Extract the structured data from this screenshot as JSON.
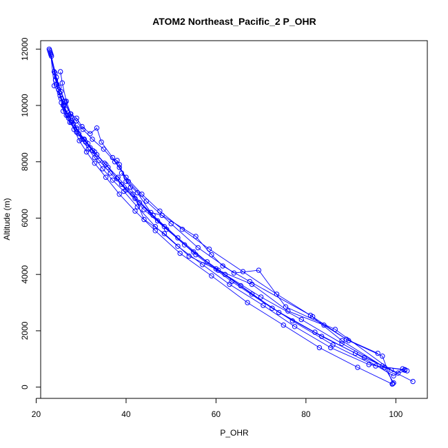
{
  "chart_data": {
    "type": "scatter",
    "title": "ATOM2 Northeast_Pacific_2 P_OHR",
    "xlabel": "P_OHR",
    "ylabel": "Altitude (m)",
    "xlim": [
      21,
      107
    ],
    "ylim": [
      -400,
      12300
    ],
    "x_ticks": [
      20,
      40,
      60,
      80,
      100
    ],
    "y_ticks": [
      0,
      2000,
      4000,
      6000,
      8000,
      10000,
      12000
    ],
    "grid": false,
    "legend": "none",
    "marker": "open-circle",
    "series_color": "#0000ff",
    "series": [
      {
        "points": [
          [
            23.0,
            11950
          ],
          [
            23.2,
            11850
          ],
          [
            24.0,
            10700
          ],
          [
            25.3,
            10350
          ],
          [
            26.0,
            9800
          ],
          [
            27.5,
            9400
          ],
          [
            29.0,
            9050
          ],
          [
            31.0,
            8700
          ],
          [
            33.0,
            8350
          ],
          [
            35.5,
            7900
          ],
          [
            38.0,
            7400
          ],
          [
            42.0,
            6700
          ],
          [
            47.0,
            5900
          ],
          [
            53.0,
            5050
          ],
          [
            60.0,
            4200
          ],
          [
            68.0,
            3300
          ],
          [
            77.0,
            2350
          ],
          [
            86.0,
            1500
          ],
          [
            95.5,
            750
          ],
          [
            102.0,
            620
          ]
        ]
      },
      {
        "points": [
          [
            103.8,
            200
          ],
          [
            97.0,
            750
          ],
          [
            88.0,
            1550
          ],
          [
            79.0,
            2400
          ],
          [
            70.0,
            3200
          ],
          [
            62.0,
            4000
          ],
          [
            55.0,
            4800
          ],
          [
            49.0,
            5600
          ],
          [
            44.0,
            6300
          ],
          [
            40.0,
            7000
          ],
          [
            36.5,
            7600
          ],
          [
            34.0,
            8050
          ],
          [
            32.0,
            8500
          ],
          [
            30.5,
            8800
          ],
          [
            29.0,
            9200
          ],
          [
            27.8,
            9600
          ],
          [
            26.5,
            10100
          ],
          [
            25.5,
            10500
          ],
          [
            24.5,
            11000
          ],
          [
            23.3,
            11800
          ]
        ]
      },
      {
        "points": [
          [
            23.1,
            11900
          ],
          [
            24.2,
            11150
          ],
          [
            25.0,
            10550
          ],
          [
            26.2,
            10000
          ],
          [
            27.0,
            9650
          ],
          [
            28.3,
            9350
          ],
          [
            29.5,
            9000
          ],
          [
            31.5,
            8650
          ],
          [
            33.5,
            8250
          ],
          [
            36.0,
            7800
          ],
          [
            39.0,
            7200
          ],
          [
            43.0,
            6550
          ],
          [
            48.5,
            5700
          ],
          [
            55.5,
            4700
          ],
          [
            63.5,
            3750
          ],
          [
            72.5,
            2800
          ],
          [
            82.0,
            1950
          ],
          [
            91.0,
            1200
          ],
          [
            99.5,
            400
          ],
          [
            101.5,
            650
          ]
        ]
      },
      {
        "points": [
          [
            99.2,
            110
          ],
          [
            91.5,
            700
          ],
          [
            83.0,
            1400
          ],
          [
            75.0,
            2200
          ],
          [
            67.0,
            3000
          ],
          [
            59.0,
            3950
          ],
          [
            52.0,
            4750
          ],
          [
            46.5,
            5550
          ],
          [
            42.0,
            6250
          ],
          [
            38.5,
            6850
          ],
          [
            35.5,
            7450
          ],
          [
            33.0,
            7950
          ],
          [
            31.2,
            8350
          ],
          [
            29.6,
            8750
          ],
          [
            28.4,
            9150
          ],
          [
            27.2,
            9550
          ],
          [
            26.0,
            10000
          ],
          [
            25.2,
            10450
          ],
          [
            24.3,
            10900
          ],
          [
            23.4,
            11750
          ]
        ]
      },
      {
        "points": [
          [
            23.3,
            11800
          ],
          [
            24.6,
            10750
          ],
          [
            25.5,
            10250
          ],
          [
            26.6,
            9850
          ],
          [
            27.9,
            9450
          ],
          [
            29.1,
            9150
          ],
          [
            30.7,
            8800
          ],
          [
            32.6,
            8400
          ],
          [
            35.2,
            7950
          ],
          [
            38.2,
            7450
          ],
          [
            41.5,
            6850
          ],
          [
            46.0,
            6100
          ],
          [
            51.5,
            5300
          ],
          [
            58.0,
            4450
          ],
          [
            65.5,
            3600
          ],
          [
            74.0,
            2650
          ],
          [
            83.5,
            1800
          ],
          [
            93.0,
            1050
          ],
          [
            100.5,
            500
          ],
          [
            102.5,
            580
          ]
        ]
      },
      {
        "points": [
          [
            96.0,
            1200
          ],
          [
            89.0,
            1700
          ],
          [
            81.5,
            2500
          ],
          [
            73.5,
            3300
          ],
          [
            66.0,
            4100
          ],
          [
            58.5,
            4900
          ],
          [
            52.5,
            5600
          ],
          [
            47.5,
            6250
          ],
          [
            43.5,
            6850
          ],
          [
            40.0,
            7450
          ],
          [
            37.5,
            8000
          ],
          [
            35.0,
            8450
          ],
          [
            32.5,
            8800
          ],
          [
            30.4,
            9150
          ],
          [
            28.9,
            9450
          ],
          [
            27.6,
            9700
          ],
          [
            26.4,
            10150
          ],
          [
            25.1,
            10650
          ],
          [
            24.0,
            11200
          ],
          [
            22.9,
            12000
          ]
        ]
      },
      {
        "points": [
          [
            25.4,
            11200
          ],
          [
            25.8,
            10800
          ],
          [
            26.7,
            10150
          ],
          [
            27.7,
            9700
          ],
          [
            29.0,
            9550
          ],
          [
            30.2,
            9250
          ],
          [
            32.0,
            9000
          ],
          [
            33.5,
            9200
          ],
          [
            34.5,
            8700
          ],
          [
            37.0,
            8150
          ],
          [
            38.5,
            7800
          ],
          [
            40.5,
            7300
          ],
          [
            44.5,
            6600
          ],
          [
            50.0,
            5800
          ],
          [
            56.0,
            4950
          ],
          [
            64.0,
            4050
          ],
          [
            69.5,
            4150
          ],
          [
            75.5,
            2850
          ],
          [
            86.5,
            2050
          ],
          [
            99.0,
            600
          ]
        ]
      },
      {
        "points": [
          [
            102.0,
            600
          ],
          [
            94.0,
            800
          ],
          [
            85.5,
            1400
          ],
          [
            77.5,
            2150
          ],
          [
            70.5,
            2900
          ],
          [
            63.0,
            3650
          ],
          [
            57.0,
            4350
          ],
          [
            51.5,
            5000
          ],
          [
            46.5,
            5700
          ],
          [
            42.5,
            6400
          ],
          [
            39.5,
            6950
          ],
          [
            37.0,
            7350
          ],
          [
            34.8,
            7750
          ],
          [
            33.0,
            8150
          ],
          [
            31.6,
            8450
          ],
          [
            30.2,
            8800
          ],
          [
            29.0,
            9050
          ],
          [
            27.8,
            9400
          ],
          [
            26.7,
            9650
          ],
          [
            25.6,
            10100
          ]
        ]
      },
      {
        "points": [
          [
            38.0,
            8050
          ],
          [
            38.5,
            7900
          ],
          [
            40.0,
            7300
          ],
          [
            42.5,
            6900
          ],
          [
            45.5,
            6200
          ],
          [
            48.0,
            6100
          ],
          [
            55.5,
            5350
          ],
          [
            59.0,
            4700
          ],
          [
            61.5,
            4300
          ],
          [
            67.5,
            3750
          ],
          [
            81.0,
            2550
          ],
          [
            88.0,
            1650
          ],
          [
            97.5,
            700
          ],
          [
            99.5,
            150
          ]
        ]
      },
      {
        "points": [
          [
            39.0,
            7600
          ],
          [
            41.0,
            7100
          ],
          [
            44.0,
            5950
          ],
          [
            48.5,
            5450
          ],
          [
            54.0,
            4650
          ],
          [
            60.5,
            4150
          ],
          [
            68.0,
            3650
          ],
          [
            76.0,
            2700
          ],
          [
            84.0,
            2200
          ],
          [
            89.5,
            1650
          ],
          [
            97.0,
            1100
          ],
          [
            99.3,
            120
          ]
        ]
      }
    ]
  }
}
